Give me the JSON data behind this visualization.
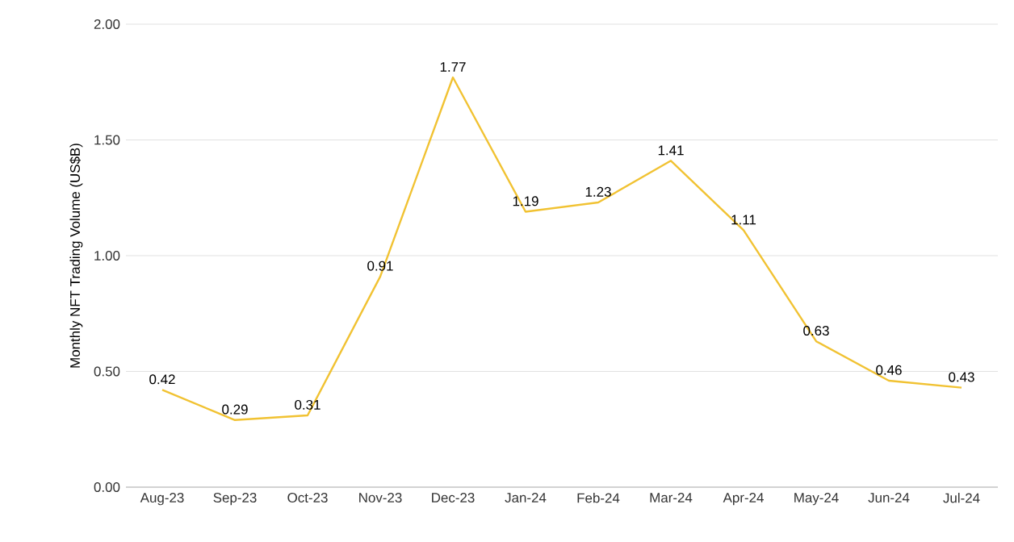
{
  "chart_data": {
    "type": "line",
    "ylabel": "Monthly NFT Trading Volume (US$B)",
    "categories": [
      "Aug-23",
      "Sep-23",
      "Oct-23",
      "Nov-23",
      "Dec-23",
      "Jan-24",
      "Feb-24",
      "Mar-24",
      "Apr-24",
      "May-24",
      "Jun-24",
      "Jul-24"
    ],
    "values": [
      0.42,
      0.29,
      0.31,
      0.91,
      1.77,
      1.19,
      1.23,
      1.41,
      1.11,
      0.63,
      0.46,
      0.43
    ],
    "color": "#f1c232",
    "ylim": [
      0,
      2
    ],
    "yticks": [
      {
        "value": 0,
        "label": "0.00"
      },
      {
        "value": 0.5,
        "label": "0.50"
      },
      {
        "value": 1,
        "label": "1.00"
      },
      {
        "value": 1.5,
        "label": "1.50"
      },
      {
        "value": 2,
        "label": "2.00"
      }
    ],
    "grid": "y",
    "data_labels": true,
    "marker": "none",
    "line_style": "solid"
  }
}
